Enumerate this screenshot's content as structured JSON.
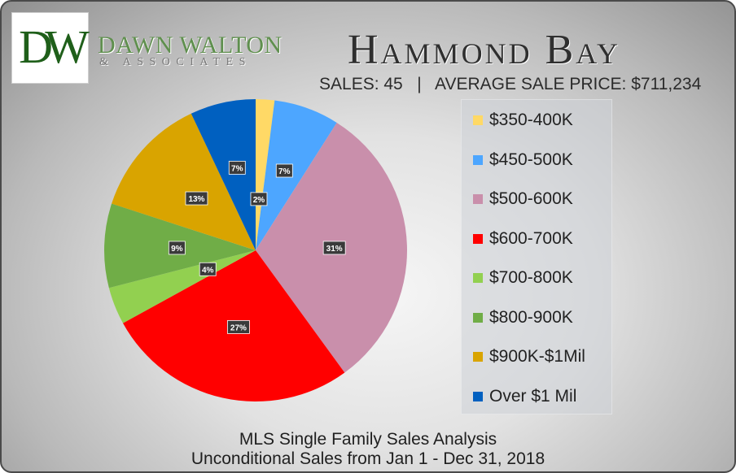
{
  "logo": {
    "monogram_d": "D",
    "monogram_w": "W",
    "firm_name": "DAWN WALTON",
    "firm_sub": "& ASSOCIATES"
  },
  "header": {
    "title": "Hammond Bay",
    "subtitle": "SALES: 45   |   AVERAGE SALE PRICE: $711,234"
  },
  "chart_data": {
    "type": "pie",
    "categories": [
      "$350-400K",
      "$450-500K",
      "$500-600K",
      "$600-700K",
      "$700-800K",
      "$800-900K",
      "$900K-$1Mil",
      "Over $1 Mil"
    ],
    "values": [
      2,
      7,
      31,
      27,
      4,
      9,
      13,
      7
    ],
    "data_labels": [
      "2%",
      "7%",
      "31%",
      "27%",
      "4%",
      "9%",
      "13%",
      "7%"
    ],
    "colors": [
      "#ffd966",
      "#4da6ff",
      "#c98fab",
      "#ff0000",
      "#92d050",
      "#70ad47",
      "#d9a400",
      "#0060c0"
    ],
    "legend_position": "right"
  },
  "footer": {
    "line1": "MLS Single Family Sales Analysis",
    "line2": "Unconditional Sales from Jan 1 - Dec 31, 2018"
  }
}
